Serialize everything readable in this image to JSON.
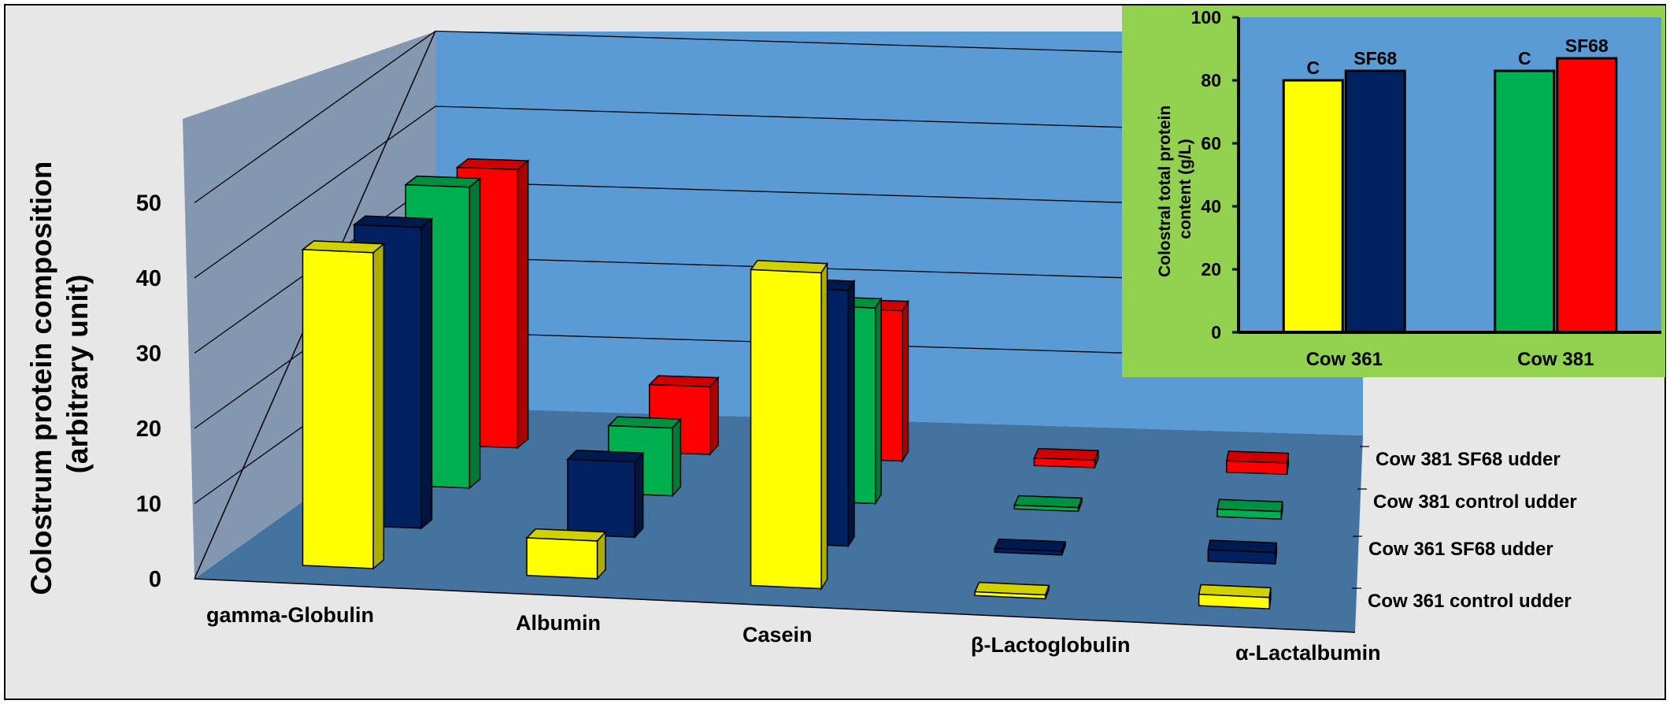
{
  "colors": {
    "page_bg": "#e7e7e7",
    "back_wall": "#5b9bd5",
    "side_wall": "#8497b0",
    "floor": "#44739f",
    "inset_bg": "#92d050",
    "inset_plot": "#5b9bd5"
  },
  "chart_data": [
    {
      "type": "bar",
      "subtype": "3d-clustered-column",
      "ylabel": "Colostrum protein composition (arbitrary unit)",
      "ylabel_lines": [
        "Colostrum protein composition",
        "(arbitrary unit)"
      ],
      "ylim": [
        0,
        50
      ],
      "yticks": [
        0,
        10,
        20,
        30,
        40,
        50
      ],
      "categories": [
        "gamma-Globulin",
        "Albumin",
        "Casein",
        "β-Lactoglobulin",
        "α-Lactalbumin"
      ],
      "grid": true,
      "series": [
        {
          "name": "Cow 361 control udder",
          "color": "#ffff00",
          "values": [
            42,
            5,
            42,
            0.5,
            1.5
          ]
        },
        {
          "name": "Cow 361 SF68 udder",
          "color": "#002060",
          "values": [
            40,
            10,
            34,
            0.5,
            1.5
          ]
        },
        {
          "name": "Cow 381 control udder",
          "color": "#00b050",
          "values": [
            40,
            9,
            26,
            0.5,
            1
          ]
        },
        {
          "name": "Cow 381 SF68 udder",
          "color": "#ff0000",
          "values": [
            37,
            9,
            20,
            1,
            1.5
          ]
        }
      ]
    },
    {
      "type": "bar",
      "ylabel": "Colostral total protein content  (g/L)",
      "ylabel_lines": [
        "Colostral total protein",
        "content  (g/L)"
      ],
      "ylim": [
        0,
        100
      ],
      "yticks": [
        0,
        20,
        40,
        60,
        80,
        100
      ],
      "categories": [
        "Cow 361",
        "Cow 381"
      ],
      "bars": [
        {
          "group": 0,
          "label": "C",
          "value": 80,
          "color": "#ffff00"
        },
        {
          "group": 0,
          "label": "SF68",
          "value": 83,
          "color": "#002060"
        },
        {
          "group": 1,
          "label": "C",
          "value": 83,
          "color": "#00b050"
        },
        {
          "group": 1,
          "label": "SF68",
          "value": 87,
          "color": "#ff0000"
        }
      ]
    }
  ]
}
